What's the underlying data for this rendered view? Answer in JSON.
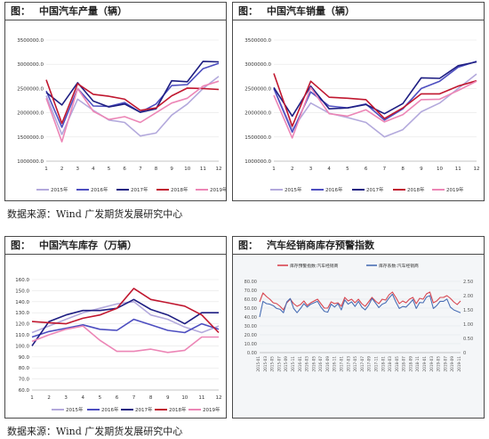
{
  "source": "数据来源：Wind  广发期货发展研究中心",
  "chart_data": [
    {
      "id": "production",
      "type": "line",
      "title_label": "图：",
      "title": "中国汽车产量（辆）",
      "ylim": [
        1000000,
        3500000
      ],
      "yticks": [
        1000000,
        1500000,
        2000000,
        2500000,
        3000000,
        3500000
      ],
      "ytick_labels": [
        "1000000.0",
        "1500000.0",
        "2000000.0",
        "2500000.0",
        "3000000.0",
        "3500000.0"
      ],
      "x": [
        1,
        2,
        3,
        4,
        5,
        6,
        7,
        8,
        9,
        10,
        11,
        12
      ],
      "x_labels": [
        "1",
        "2",
        "3",
        "4",
        "5",
        "6",
        "7",
        "8",
        "9",
        "10",
        "11",
        "12"
      ],
      "series": [
        {
          "name": "2015年",
          "color": "#b3a9dc",
          "values": [
            2350000,
            1550000,
            2280000,
            2050000,
            1850000,
            1800000,
            1520000,
            1580000,
            1950000,
            2180000,
            2500000,
            2750000
          ]
        },
        {
          "name": "2016年",
          "color": "#4d4ec0",
          "values": [
            2450000,
            1700000,
            2500000,
            2140000,
            2130000,
            2210000,
            2010000,
            2180000,
            2560000,
            2580000,
            2910000,
            3020000
          ]
        },
        {
          "name": "2017年",
          "color": "#1e1e82",
          "values": [
            2420000,
            2160000,
            2620000,
            2240000,
            2120000,
            2180000,
            2010000,
            2080000,
            2660000,
            2640000,
            3060000,
            3050000
          ]
        },
        {
          "name": "2018年",
          "color": "#c0172f",
          "values": [
            2680000,
            1780000,
            2600000,
            2380000,
            2340000,
            2280000,
            2050000,
            2100000,
            2350000,
            2510000,
            2500000,
            2480000
          ]
        },
        {
          "name": "2019年",
          "color": "#ec86b6",
          "values": [
            2300000,
            1400000,
            2500000,
            2030000,
            1860000,
            1920000,
            1800000,
            2000000,
            2200000,
            2300000,
            2550000,
            2650000
          ]
        }
      ]
    },
    {
      "id": "sales",
      "type": "line",
      "title_label": "图：",
      "title": "中国汽车销量（辆）",
      "ylim": [
        1000000,
        3500000
      ],
      "yticks": [
        1000000,
        1500000,
        2000000,
        2500000,
        3000000,
        3500000
      ],
      "ytick_labels": [
        "1000000.0",
        "1500000.0",
        "2000000.0",
        "2500000.0",
        "3000000.0",
        "3500000.0"
      ],
      "x": [
        1,
        2,
        3,
        4,
        5,
        6,
        7,
        8,
        9,
        10,
        11,
        12
      ],
      "x_labels": [
        "1",
        "2",
        "3",
        "4",
        "5",
        "6",
        "7",
        "8",
        "9",
        "10",
        "11",
        "12"
      ],
      "series": [
        {
          "name": "2015年",
          "color": "#b3a9dc",
          "values": [
            2500000,
            1650000,
            2200000,
            1990000,
            1900000,
            1800000,
            1500000,
            1650000,
            2020000,
            2200000,
            2500000,
            2800000
          ]
        },
        {
          "name": "2016年",
          "color": "#4d4ec0",
          "values": [
            2500000,
            1600000,
            2430000,
            2140000,
            2100000,
            2180000,
            1850000,
            2080000,
            2500000,
            2650000,
            2940000,
            3060000
          ]
        },
        {
          "name": "2017年",
          "color": "#1e1e82",
          "values": [
            2520000,
            1930000,
            2550000,
            2080000,
            2100000,
            2170000,
            1980000,
            2190000,
            2720000,
            2710000,
            2970000,
            3050000
          ]
        },
        {
          "name": "2018年",
          "color": "#c0172f",
          "values": [
            2810000,
            1720000,
            2650000,
            2320000,
            2300000,
            2270000,
            1880000,
            2100000,
            2390000,
            2390000,
            2550000,
            2660000
          ]
        },
        {
          "name": "2019年",
          "color": "#ec86b6",
          "values": [
            2360000,
            1480000,
            2520000,
            1980000,
            1930000,
            2060000,
            1810000,
            1960000,
            2270000,
            2280000,
            2460000,
            2650000
          ]
        }
      ]
    },
    {
      "id": "inventory",
      "type": "line",
      "title_label": "图：",
      "title": "中国汽车库存（万辆）",
      "ylim": [
        60,
        160
      ],
      "yticks": [
        60,
        70,
        80,
        90,
        100,
        110,
        120,
        130,
        140,
        150,
        160
      ],
      "ytick_labels": [
        "60.0",
        "70.0",
        "80.0",
        "90.0",
        "100.0",
        "110.0",
        "120.0",
        "130.0",
        "140.0",
        "150.0",
        "160.0"
      ],
      "x": [
        1,
        2,
        3,
        4,
        5,
        6,
        7,
        8,
        9,
        10,
        11,
        12
      ],
      "x_labels": [
        "1",
        "2",
        "3",
        "4",
        "5",
        "6",
        "7",
        "8",
        "9",
        "10",
        "11",
        "12"
      ],
      "series": [
        {
          "name": "2015年",
          "color": "#b3a9dc",
          "values": [
            112,
            118,
            124,
            130,
            134,
            138,
            140,
            128,
            124,
            117,
            112,
            118
          ]
        },
        {
          "name": "2016年",
          "color": "#4d4ec0",
          "values": [
            108,
            113,
            116,
            119,
            115,
            114,
            124,
            119,
            114,
            112,
            120,
            115
          ]
        },
        {
          "name": "2017年",
          "color": "#1e1e82",
          "values": [
            100,
            122,
            128,
            132,
            132,
            134,
            142,
            133,
            128,
            120,
            130,
            130
          ]
        },
        {
          "name": "2018年",
          "color": "#c0172f",
          "values": [
            122,
            121,
            120,
            125,
            128,
            134,
            152,
            142,
            139,
            136,
            128,
            112
          ]
        },
        {
          "name": "2019年",
          "color": "#ec86b6",
          "values": [
            104,
            110,
            115,
            118,
            105,
            95,
            95,
            97,
            94,
            96,
            108,
            108
          ]
        }
      ]
    },
    {
      "id": "warning_index",
      "type": "line",
      "title_label": "图：",
      "title": "汽车经销商库存预警指数",
      "ylim": [
        0,
        80
      ],
      "yticks": [
        0,
        10,
        20,
        30,
        40,
        50,
        60,
        70,
        80
      ],
      "ytick_labels": [
        "0.00",
        "10.00",
        "20.00",
        "30.00",
        "40.00",
        "50.00",
        "60.00",
        "70.00",
        "80.00"
      ],
      "y2lim": [
        0,
        2.5
      ],
      "y2ticks": [
        0,
        0.5,
        1.0,
        1.5,
        2.0,
        2.5
      ],
      "y2tick_labels": [
        "0",
        "0.50",
        "1.00",
        "1.50",
        "2.00",
        "2.50"
      ],
      "x_labels": [
        "2015-01",
        "2015-03",
        "2015-05",
        "2015-07",
        "2015-09",
        "2015-11",
        "2016-01",
        "2016-03",
        "2016-05",
        "2016-07",
        "2016-09",
        "2016-11",
        "2017-01",
        "2017-03",
        "2017-05",
        "2017-07",
        "2017-09",
        "2017-11",
        "2018-01",
        "2018-03",
        "2018-05",
        "2018-07",
        "2018-09",
        "2018-11",
        "2019-01",
        "2019-03",
        "2019-05",
        "2019-07",
        "2019-09",
        "2019-11"
      ],
      "series": [
        {
          "name": "库存预警指数:汽车经销商",
          "axis": "left",
          "color": "#d8454f",
          "values": [
            57,
            67,
            63,
            60,
            56,
            55,
            52,
            48,
            56,
            60,
            55,
            52,
            54,
            58,
            53,
            56,
            58,
            60,
            55,
            50,
            50,
            57,
            55,
            56,
            52,
            62,
            58,
            60,
            56,
            60,
            55,
            52,
            57,
            62,
            58,
            55,
            60,
            59,
            65,
            68,
            62,
            55,
            58,
            56,
            60,
            62,
            55,
            61,
            60,
            66,
            68,
            56,
            58,
            62,
            62,
            64,
            61,
            57,
            54,
            58
          ]
        },
        {
          "name": "库存系数:汽车经销商",
          "axis": "right",
          "color": "#4a6fb5",
          "values": [
            1.25,
            1.8,
            1.72,
            1.7,
            1.65,
            1.55,
            1.52,
            1.4,
            1.78,
            1.9,
            1.55,
            1.4,
            1.55,
            1.72,
            1.6,
            1.7,
            1.75,
            1.8,
            1.6,
            1.45,
            1.42,
            1.7,
            1.6,
            1.72,
            1.5,
            1.85,
            1.7,
            1.78,
            1.62,
            1.8,
            1.6,
            1.5,
            1.66,
            1.9,
            1.75,
            1.58,
            1.7,
            1.75,
            1.92,
            2.05,
            1.78,
            1.55,
            1.62,
            1.6,
            1.72,
            1.86,
            1.55,
            1.76,
            1.75,
            1.95,
            2.0,
            1.55,
            1.65,
            1.8,
            1.8,
            1.88,
            1.6,
            1.5,
            1.45,
            1.4
          ]
        }
      ]
    }
  ]
}
